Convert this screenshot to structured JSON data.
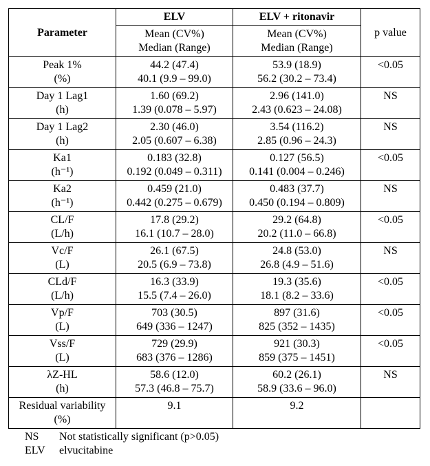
{
  "table": {
    "header": {
      "parameter": "Parameter",
      "elv": "ELV",
      "elv_rtv": "ELV + ritonavir",
      "p_value": "p value",
      "subhead_elv_1": "Mean (CV%)",
      "subhead_elv_2": "Median (Range)",
      "subhead_elvr_1": "Mean (CV%)",
      "subhead_elvr_2": "Median (Range)"
    },
    "rows": [
      {
        "param_1": "Peak 1%",
        "param_2": "(%)",
        "elv_1": "44.2 (47.4)",
        "elv_2": "40.1 (9.9 – 99.0)",
        "elvr_1": "53.9 (18.9)",
        "elvr_2": "56.2 (30.2 – 73.4)",
        "p": "<0.05"
      },
      {
        "param_1": "Day 1 Lag1",
        "param_2": "(h)",
        "elv_1": "1.60 (69.2)",
        "elv_2": "1.39 (0.078 – 5.97)",
        "elvr_1": "2.96 (141.0)",
        "elvr_2": "2.43 (0.623 – 24.08)",
        "p": "NS"
      },
      {
        "param_1": "Day 1 Lag2",
        "param_2": "(h)",
        "elv_1": "2.30 (46.0)",
        "elv_2": "2.05 (0.607 – 6.38)",
        "elvr_1": "3.54 (116.2)",
        "elvr_2": "2.85 (0.96 – 24.3)",
        "p": "NS"
      },
      {
        "param_1": "Ka1",
        "param_2": "(h⁻¹)",
        "elv_1": "0.183 (32.8)",
        "elv_2": "0.192 (0.049 – 0.311)",
        "elvr_1": "0.127 (56.5)",
        "elvr_2": "0.141 (0.004 – 0.246)",
        "p": "<0.05"
      },
      {
        "param_1": "Ka2",
        "param_2": "(h⁻¹)",
        "elv_1": "0.459 (21.0)",
        "elv_2": "0.442 (0.275 – 0.679)",
        "elvr_1": "0.483 (37.7)",
        "elvr_2": "0.450 (0.194 – 0.809)",
        "p": "NS"
      },
      {
        "param_1": "CL/F",
        "param_2": "(L/h)",
        "elv_1": "17.8 (29.2)",
        "elv_2": "16.1 (10.7 – 28.0)",
        "elvr_1": "29.2 (64.8)",
        "elvr_2": "20.2 (11.0 – 66.8)",
        "p": "<0.05"
      },
      {
        "param_1": "Vc/F",
        "param_2": "(L)",
        "elv_1": "26.1 (67.5)",
        "elv_2": "20.5 (6.9 – 73.8)",
        "elvr_1": "24.8 (53.0)",
        "elvr_2": "26.8 (4.9 – 51.6)",
        "p": "NS"
      },
      {
        "param_1": "CLd/F",
        "param_2": "(L/h)",
        "elv_1": "16.3 (33.9)",
        "elv_2": "15.5 (7.4 – 26.0)",
        "elvr_1": "19.3 (35.6)",
        "elvr_2": "18.1 (8.2 – 33.6)",
        "p": "<0.05"
      },
      {
        "param_1": "Vp/F",
        "param_2": "(L)",
        "elv_1": "703 (30.5)",
        "elv_2": "649 (336 – 1247)",
        "elvr_1": "897 (31.6)",
        "elvr_2": "825 (352 – 1435)",
        "p": "<0.05"
      },
      {
        "param_1": "Vss/F",
        "param_2": "(L)",
        "elv_1": "729 (29.9)",
        "elv_2": "683 (376 – 1286)",
        "elvr_1": "921 (30.3)",
        "elvr_2": "859 (375 – 1451)",
        "p": "<0.05"
      },
      {
        "param_1": "λZ-HL",
        "param_2": "(h)",
        "elv_1": "58.6 (12.0)",
        "elv_2": "57.3 (46.8 – 75.7)",
        "elvr_1": "60.2 (26.1)",
        "elvr_2": "58.9 (33.6 – 96.0)",
        "p": "NS"
      },
      {
        "param_1": "Residual variability",
        "param_2": "(%)",
        "elv_1": "9.1",
        "elv_2": "",
        "elvr_1": "9.2",
        "elvr_2": "",
        "p": ""
      }
    ],
    "footnotes": {
      "ns_abbr": "NS",
      "ns_text": "Not statistically significant (p>0.05)",
      "elv_abbr": "ELV",
      "elv_text": "elvucitabine"
    }
  }
}
